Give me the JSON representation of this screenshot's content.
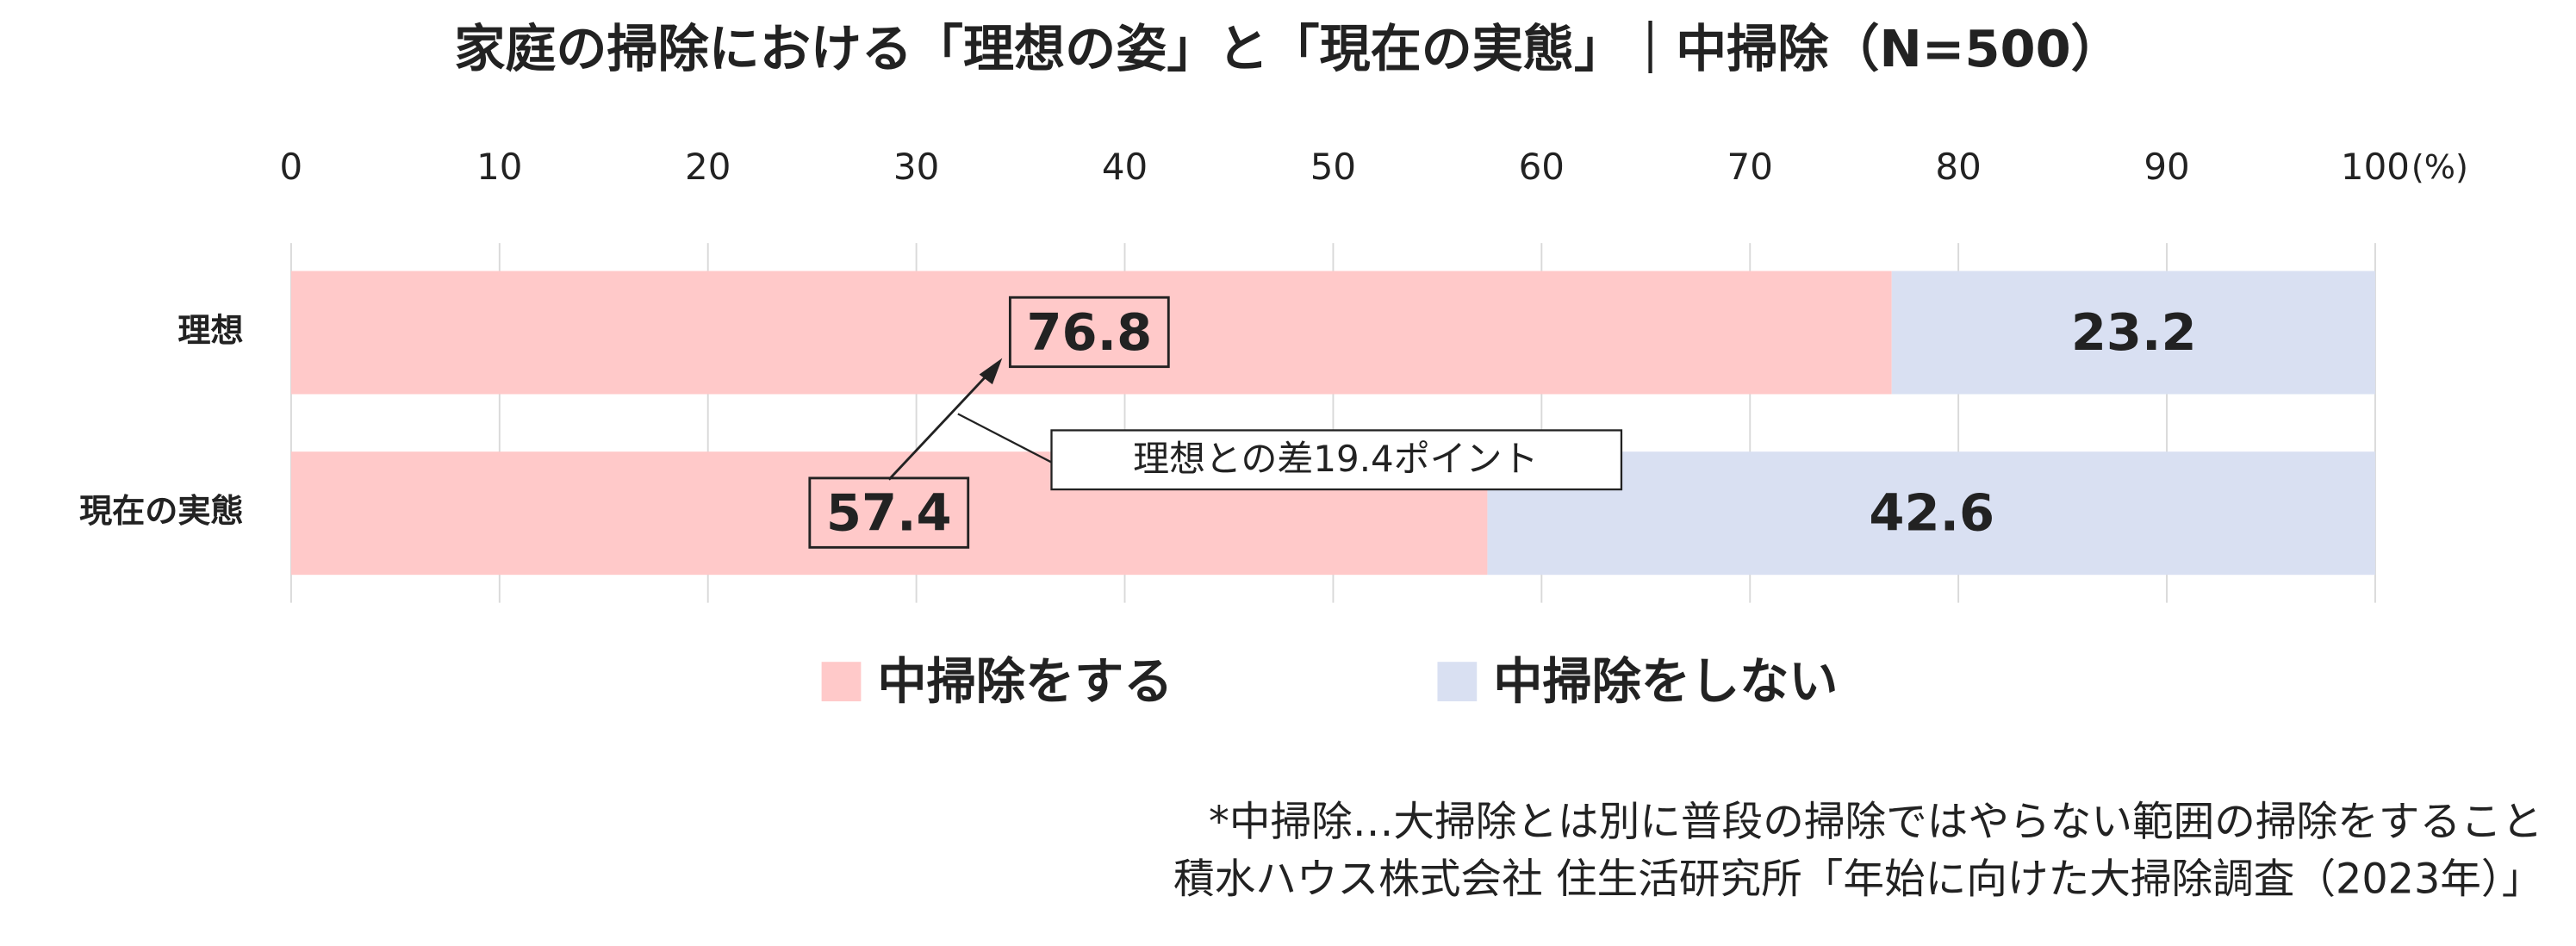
{
  "chart_data": {
    "type": "stacked_barh",
    "title": "家庭の掃除における「理想の姿」と「現在の実態」｜中掃除（N=500）",
    "categories": [
      "理想",
      "現在の実態"
    ],
    "series": [
      {
        "name": "中掃除をする",
        "color": "#ffc9c9",
        "values": [
          76.8,
          57.4
        ]
      },
      {
        "name": "中掃除をしない",
        "color": "#d9e0f2",
        "values": [
          23.2,
          42.6
        ]
      }
    ],
    "xlim": [
      0,
      100
    ],
    "xticks": [
      0,
      10,
      20,
      30,
      40,
      50,
      60,
      70,
      80,
      90,
      100
    ],
    "x_unit": "(%)",
    "grid": true,
    "annotation": "理想との差19.4ポイント",
    "notes": [
      "*中掃除…大掃除とは別に普段の掃除ではやらない範囲の掃除をすること",
      "積水ハウス株式会社 住生活研究所「年始に向けた大掃除調査（2023年）」"
    ]
  }
}
